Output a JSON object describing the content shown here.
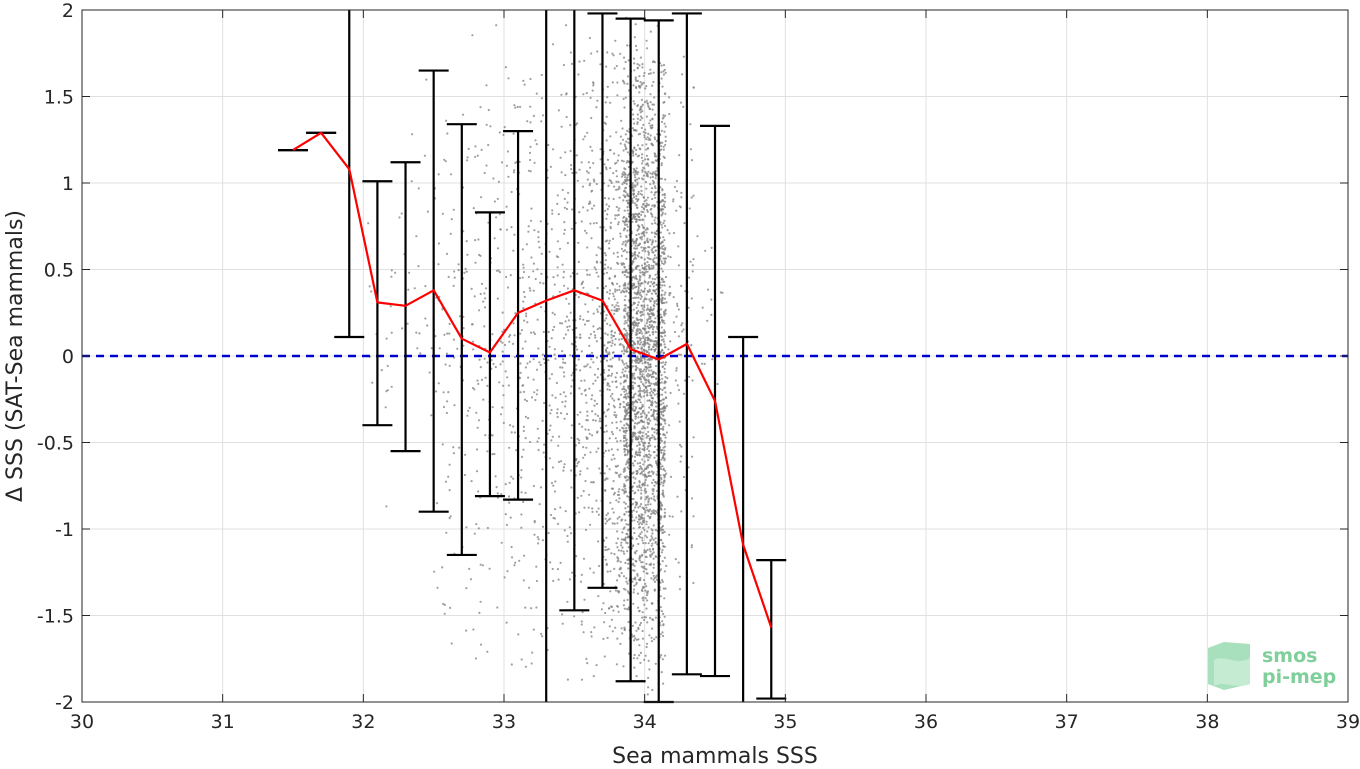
{
  "chart_data": {
    "type": "scatter",
    "xlabel": "Sea mammals SSS",
    "ylabel": "Δ SSS (SAT-Sea mammals)",
    "xlim": [
      30,
      39
    ],
    "ylim": [
      -2,
      2
    ],
    "xticks": [
      30,
      31,
      32,
      33,
      34,
      35,
      36,
      37,
      38,
      39
    ],
    "yticks": [
      -2,
      -1.5,
      -1,
      -0.5,
      0,
      0.5,
      1,
      1.5,
      2
    ],
    "xtick_labels": [
      "30",
      "31",
      "32",
      "33",
      "34",
      "35",
      "36",
      "37",
      "38",
      "39"
    ],
    "ytick_labels": [
      "-2",
      "-1.5",
      "-1",
      "-0.5",
      "0",
      "0.5",
      "1",
      "1.5",
      "2"
    ],
    "grid": true,
    "zero_line": {
      "y": 0,
      "style": "dashed",
      "color": "#0000cc"
    },
    "mean_line": {
      "color": "#ff0000",
      "x": [
        31.5,
        31.7,
        31.9,
        32.1,
        32.3,
        32.5,
        32.7,
        32.9,
        33.1,
        33.3,
        33.5,
        33.7,
        33.9,
        34.1,
        34.3,
        34.5,
        34.7,
        34.9
      ],
      "y": [
        1.19,
        1.29,
        1.08,
        0.31,
        0.29,
        0.38,
        0.1,
        0.02,
        0.25,
        0.32,
        0.38,
        0.32,
        0.04,
        -0.02,
        0.07,
        -0.26,
        -1.09,
        -1.57
      ]
    },
    "error_bars": {
      "color": "#000000",
      "x": [
        31.5,
        31.7,
        31.9,
        32.1,
        32.3,
        32.5,
        32.7,
        32.9,
        33.1,
        33.3,
        33.5,
        33.7,
        33.9,
        34.1,
        34.3,
        34.5,
        34.7,
        34.9
      ],
      "lower": [
        1.19,
        1.29,
        0.11,
        -0.4,
        -0.55,
        -0.9,
        -1.15,
        -0.81,
        -0.83,
        -2.05,
        -1.47,
        -1.34,
        -1.88,
        -2.0,
        -1.84,
        -1.85,
        -2.05,
        -1.98
      ],
      "upper": [
        1.19,
        1.29,
        2.05,
        1.01,
        1.12,
        1.65,
        1.34,
        0.83,
        1.3,
        2.05,
        2.05,
        1.98,
        1.95,
        1.94,
        1.98,
        1.33,
        0.11,
        -1.18
      ]
    },
    "scatter": {
      "color": "#808080",
      "note_density": "dense near 33.9-34.1, sparse 32-33.5",
      "clusters": [
        {
          "x_range": [
            32.0,
            32.2
          ],
          "y_range": [
            -1.3,
            1.3
          ],
          "count": 15
        },
        {
          "x_range": [
            32.2,
            32.5
          ],
          "y_range": [
            -1.0,
            1.9
          ],
          "count": 30
        },
        {
          "x_range": [
            32.5,
            32.8
          ],
          "y_range": [
            -1.9,
            2.0
          ],
          "count": 120
        },
        {
          "x_range": [
            32.8,
            33.1
          ],
          "y_range": [
            -1.9,
            2.0
          ],
          "count": 180
        },
        {
          "x_range": [
            33.1,
            33.4
          ],
          "y_range": [
            -2.0,
            2.0
          ],
          "count": 250
        },
        {
          "x_range": [
            33.4,
            33.7
          ],
          "y_range": [
            -2.0,
            2.0
          ],
          "count": 380
        },
        {
          "x_range": [
            33.7,
            33.85
          ],
          "y_range": [
            -2.0,
            2.0
          ],
          "count": 420
        },
        {
          "x_range": [
            33.85,
            34.15
          ],
          "y_range": [
            -2.0,
            2.0
          ],
          "count": 2600
        },
        {
          "x_range": [
            34.15,
            34.35
          ],
          "y_range": [
            -1.5,
            1.8
          ],
          "count": 120
        },
        {
          "x_range": [
            34.35,
            34.6
          ],
          "y_range": [
            -0.5,
            1.0
          ],
          "count": 15
        }
      ]
    }
  },
  "logo": {
    "line1": "smos",
    "line2": "pi-mep",
    "color": "#7fcf9a"
  }
}
